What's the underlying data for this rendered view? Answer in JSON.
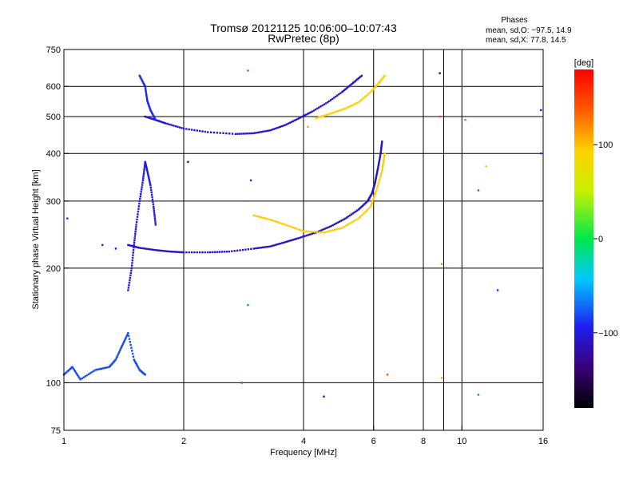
{
  "chart_data": {
    "type": "scatter",
    "title": "Tromsø 20121125 10:06:00–10:07:43",
    "subtitle": "RwPretec (8p)",
    "xlabel": "Frequency [MHz]",
    "ylabel": "Stationary phase Virtual Height [km]",
    "x_scale": "log",
    "y_scale": "log",
    "xlim": [
      1,
      16
    ],
    "ylim": [
      75,
      750
    ],
    "x_ticks": [
      1,
      2,
      4,
      6,
      8,
      10,
      16
    ],
    "x_tick_labels": [
      "1",
      "2",
      "4",
      "6",
      "8",
      "10",
      "16"
    ],
    "y_ticks": [
      75,
      100,
      200,
      300,
      400,
      500,
      600,
      750
    ],
    "y_tick_labels": [
      "75",
      "100",
      "200",
      "300",
      "400",
      "500",
      "600",
      "750"
    ],
    "grid": true,
    "phase_info": {
      "heading": "Phases",
      "line1": "mean, sd,O: −97.5, 14.9",
      "line2": "mean, sd,X:  77.8, 14.5"
    },
    "colorbar": {
      "label": "[deg]",
      "min": -180,
      "max": 180,
      "ticks": [
        100,
        0,
        -100
      ],
      "tick_labels": [
        "100",
        "0",
        "−100"
      ]
    },
    "traces": [
      {
        "points": [
          [
            1.45,
            230
          ],
          [
            1.55,
            226
          ],
          [
            1.7,
            223
          ],
          [
            1.85,
            221
          ],
          [
            2.0,
            220
          ],
          [
            2.3,
            220
          ],
          [
            2.6,
            221
          ],
          [
            3.0,
            225
          ],
          [
            3.3,
            228
          ],
          [
            3.6,
            234
          ],
          [
            3.9,
            240
          ],
          [
            4.3,
            248
          ],
          [
            4.7,
            258
          ],
          [
            5.1,
            270
          ],
          [
            5.5,
            285
          ],
          [
            5.8,
            300
          ],
          [
            5.95,
            315
          ],
          [
            6.05,
            335
          ],
          [
            6.15,
            365
          ],
          [
            6.25,
            400
          ],
          [
            6.3,
            430
          ]
        ],
        "phase": -110
      },
      {
        "points": [
          [
            3.0,
            275
          ],
          [
            3.3,
            268
          ],
          [
            3.6,
            260
          ],
          [
            4.0,
            250
          ],
          [
            4.5,
            248
          ],
          [
            5.0,
            255
          ],
          [
            5.5,
            270
          ],
          [
            5.9,
            290
          ],
          [
            6.1,
            320
          ],
          [
            6.3,
            360
          ],
          [
            6.4,
            400
          ]
        ],
        "phase": 95
      },
      {
        "points": [
          [
            1.6,
            500
          ],
          [
            1.7,
            490
          ],
          [
            1.8,
            480
          ],
          [
            2.0,
            465
          ],
          [
            2.3,
            455
          ],
          [
            2.7,
            450
          ],
          [
            3.0,
            452
          ],
          [
            3.3,
            460
          ],
          [
            3.6,
            475
          ],
          [
            3.9,
            495
          ],
          [
            4.2,
            515
          ],
          [
            4.6,
            545
          ],
          [
            5.0,
            580
          ],
          [
            5.3,
            610
          ],
          [
            5.6,
            640
          ]
        ],
        "phase": -105
      },
      {
        "points": [
          [
            4.3,
            495
          ],
          [
            4.7,
            510
          ],
          [
            5.1,
            525
          ],
          [
            5.5,
            545
          ],
          [
            5.9,
            580
          ],
          [
            6.2,
            615
          ],
          [
            6.4,
            640
          ]
        ],
        "phase": 90
      },
      {
        "points": [
          [
            1.45,
            175
          ],
          [
            1.48,
            200
          ],
          [
            1.5,
            230
          ],
          [
            1.52,
            260
          ],
          [
            1.55,
            300
          ],
          [
            1.58,
            340
          ],
          [
            1.6,
            380
          ],
          [
            1.62,
            360
          ],
          [
            1.65,
            330
          ],
          [
            1.68,
            290
          ],
          [
            1.7,
            260
          ]
        ],
        "phase": -100
      },
      {
        "points": [
          [
            1.55,
            640
          ],
          [
            1.6,
            600
          ],
          [
            1.62,
            550
          ],
          [
            1.65,
            520
          ],
          [
            1.7,
            490
          ]
        ],
        "phase": -90
      },
      {
        "points": [
          [
            1.0,
            105
          ],
          [
            1.05,
            110
          ],
          [
            1.1,
            102
          ],
          [
            1.2,
            108
          ],
          [
            1.3,
            110
          ],
          [
            1.35,
            115
          ],
          [
            1.4,
            125
          ],
          [
            1.45,
            135
          ],
          [
            1.5,
            115
          ],
          [
            1.55,
            108
          ],
          [
            1.6,
            105
          ]
        ],
        "phase": -80
      }
    ],
    "scatter": [
      {
        "x": 1.02,
        "y": 270,
        "phase": -90
      },
      {
        "x": 1.25,
        "y": 230,
        "phase": -100
      },
      {
        "x": 1.35,
        "y": 225,
        "phase": -100
      },
      {
        "x": 2.05,
        "y": 380,
        "phase": -120
      },
      {
        "x": 2.9,
        "y": 660,
        "phase": -60
      },
      {
        "x": 2.95,
        "y": 340,
        "phase": -90
      },
      {
        "x": 2.9,
        "y": 160,
        "phase": -60
      },
      {
        "x": 2.8,
        "y": 100,
        "phase": -70
      },
      {
        "x": 4.1,
        "y": 470,
        "phase": 110
      },
      {
        "x": 4.5,
        "y": 92,
        "phase": -110
      },
      {
        "x": 6.5,
        "y": 105,
        "phase": 140
      },
      {
        "x": 8.8,
        "y": 650,
        "phase": -130
      },
      {
        "x": 8.8,
        "y": 500,
        "phase": 150
      },
      {
        "x": 8.9,
        "y": 205,
        "phase": 120
      },
      {
        "x": 8.9,
        "y": 103,
        "phase": 110
      },
      {
        "x": 10.2,
        "y": 490,
        "phase": 130
      },
      {
        "x": 11.0,
        "y": 320,
        "phase": -70
      },
      {
        "x": 11.0,
        "y": 93,
        "phase": -60
      },
      {
        "x": 11.5,
        "y": 370,
        "phase": 100
      },
      {
        "x": 12.3,
        "y": 175,
        "phase": -90
      },
      {
        "x": 15.8,
        "y": 400,
        "phase": -90
      },
      {
        "x": 15.8,
        "y": 520,
        "phase": -100
      }
    ]
  }
}
